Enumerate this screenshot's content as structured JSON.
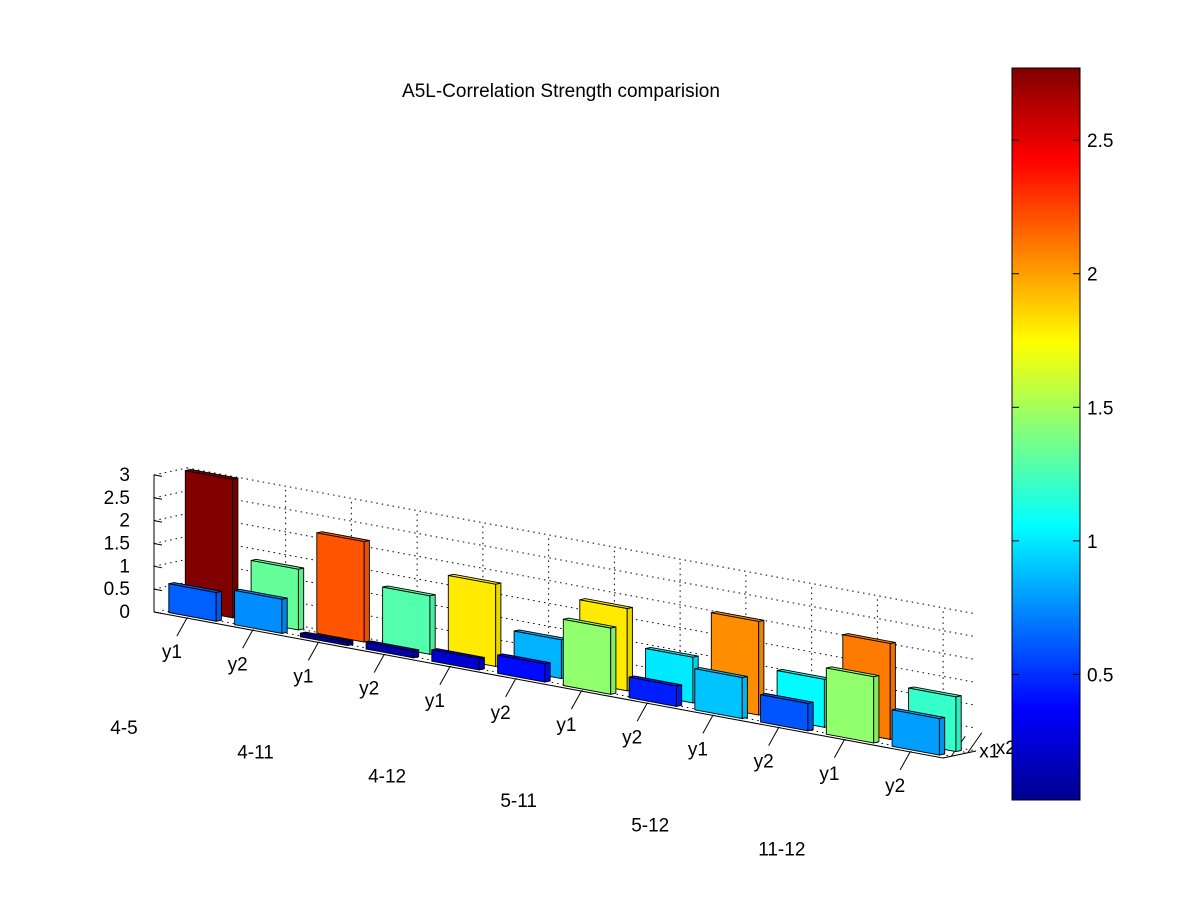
{
  "chart_data": {
    "type": "bar",
    "subtype": "3d-grouped-bar",
    "title": "A5L-Correlation Strength comparision",
    "groups": [
      "4-5",
      "4-11",
      "4-12",
      "5-11",
      "5-12",
      "11-12"
    ],
    "subcategories": [
      "y1",
      "y2"
    ],
    "depth_labels": [
      "x1",
      "x2"
    ],
    "series": [
      {
        "name": "x1",
        "y1": [
          0.63,
          0.08,
          0.25,
          1.45,
          0.9,
          1.45
        ],
        "y2": [
          0.75,
          0.15,
          0.4,
          0.45,
          0.6,
          0.8
        ]
      },
      {
        "name": "x2",
        "y1": [
          3.03,
          2.2,
          1.8,
          1.8,
          2.05,
          2.1
        ],
        "y2": [
          1.33,
          1.28,
          0.85,
          1.0,
          1.05,
          1.2
        ]
      }
    ],
    "zlim": [
      0,
      3
    ],
    "zticks": [
      "0",
      "0.5",
      "1",
      "1.5",
      "2",
      "2.5",
      "3"
    ],
    "colorbar": {
      "colormap": "jet",
      "range": [
        0.03,
        2.77
      ],
      "ticks": [
        "0.5",
        "1",
        "1.5",
        "2",
        "2.5"
      ]
    },
    "grid": true
  }
}
